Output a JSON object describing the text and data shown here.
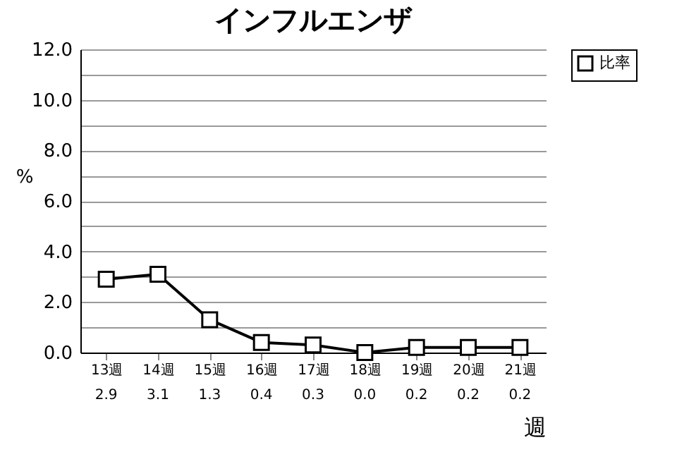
{
  "chart_data": {
    "type": "line",
    "title": "インフルエンザ",
    "xlabel": "週",
    "ylabel": "%",
    "categories": [
      "13週",
      "14週",
      "15週",
      "16週",
      "17週",
      "18週",
      "19週",
      "20週",
      "21週"
    ],
    "series": [
      {
        "name": "比率",
        "color": "#000000",
        "values": [
          2.9,
          3.1,
          1.3,
          0.4,
          0.3,
          0.0,
          0.2,
          0.2,
          0.2
        ],
        "value_labels": [
          "2.9",
          "3.1",
          "1.3",
          "0.4",
          "0.3",
          "0.0",
          "0.2",
          "0.2",
          "0.2"
        ]
      }
    ],
    "ylim": [
      0,
      12
    ],
    "yticks": [
      "0.0",
      {
        "value": 1,
        "label": null
      },
      "2.0",
      {
        "value": 3,
        "label": null
      },
      "4.0",
      {
        "value": 5,
        "label": null
      },
      "6.0",
      {
        "value": 7,
        "label": null
      },
      "8.0",
      {
        "value": 9,
        "label": null
      },
      "10.0",
      {
        "value": 11,
        "label": null
      },
      "12.0"
    ],
    "grid": "y",
    "legend": "top right",
    "marker": "square",
    "line_style": "solid"
  }
}
